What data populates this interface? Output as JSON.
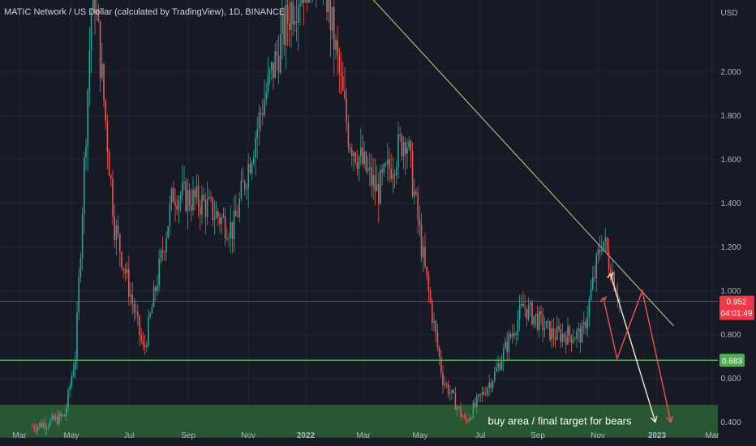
{
  "header": {
    "title": "MATIC Network / US Dollar (calculated by TradingView), 1D, BINANCE"
  },
  "colors": {
    "background": "#161a25",
    "grid": "#232734",
    "text": "#b2b5be",
    "up": "#26a69a",
    "down": "#ef5350",
    "support": "#4caf50",
    "zone": "#2e6b37",
    "trendline": "#d6c98c",
    "price_badge": "#f23645"
  },
  "chart_data": {
    "type": "candlestick",
    "title": "MATIC Network / US Dollar (calculated by TradingView), 1D, BINANCE",
    "currency": "USD",
    "x_axis_ticks": [
      "Mar",
      "May",
      "Jul",
      "Sep",
      "Nov",
      "2022",
      "Mar",
      "May",
      "Jul",
      "Sep",
      "Nov",
      "2023",
      "Mar"
    ],
    "y_axis_ticks": [
      "2.000",
      "1.800",
      "1.600",
      "1.400",
      "1.200",
      "1.000",
      "0.800",
      "0.600",
      "0.400"
    ],
    "ylim": [
      0.31,
      2.22
    ],
    "grid": true,
    "current_price": {
      "value": "0.952",
      "countdown": "04:01:49"
    },
    "support_level": {
      "value": "0.683"
    },
    "buy_zone": {
      "low": 0.33,
      "high": 0.48,
      "label": "buy area / final target for bears"
    },
    "trendline": {
      "from": [
        "Jan 2022",
        2.7
      ],
      "to": [
        "Jan 2023",
        0.84
      ]
    },
    "price_path": [
      {
        "date": "Mar 2021",
        "price": 0.38
      },
      {
        "date": "Apr 2021",
        "price": 0.4
      },
      {
        "date": "Apr 2021",
        "price": 0.43
      },
      {
        "date": "May 2021",
        "price": 0.72
      },
      {
        "date": "May 2021",
        "price": 2.45
      },
      {
        "date": "Jun 2021",
        "price": 1.3
      },
      {
        "date": "Jul 2021",
        "price": 0.72
      },
      {
        "date": "Aug 2021",
        "price": 1.45
      },
      {
        "date": "Sep 2021",
        "price": 1.4
      },
      {
        "date": "Oct 2021",
        "price": 1.28
      },
      {
        "date": "Nov 2021",
        "price": 1.85
      },
      {
        "date": "Dec 2021",
        "price": 2.3
      },
      {
        "date": "Jan 2022",
        "price": 2.55
      },
      {
        "date": "Feb 2022",
        "price": 1.7
      },
      {
        "date": "Mar 2022",
        "price": 1.45
      },
      {
        "date": "Apr 2022",
        "price": 1.72
      },
      {
        "date": "May 2022",
        "price": 1.1
      },
      {
        "date": "May 2022",
        "price": 0.6
      },
      {
        "date": "Jun 2022",
        "price": 0.4
      },
      {
        "date": "Jul 2022",
        "price": 0.62
      },
      {
        "date": "Aug 2022",
        "price": 0.93
      },
      {
        "date": "Sep 2022",
        "price": 0.8
      },
      {
        "date": "Oct 2022",
        "price": 0.8
      },
      {
        "date": "Nov 2022",
        "price": 1.25
      },
      {
        "date": "Nov 2022",
        "price": 0.952
      }
    ],
    "projections": [
      {
        "name": "bear-path",
        "points": [
          [
            "Nov 2022",
            1.07
          ],
          [
            "Dec 2022",
            0.4
          ]
        ]
      },
      {
        "name": "alt-path",
        "points": [
          [
            "Nov 2022",
            0.96
          ],
          [
            "Nov 2022",
            0.69
          ],
          [
            "Dec 2022",
            1.0
          ],
          [
            "Jan 2023",
            0.4
          ]
        ]
      }
    ]
  }
}
